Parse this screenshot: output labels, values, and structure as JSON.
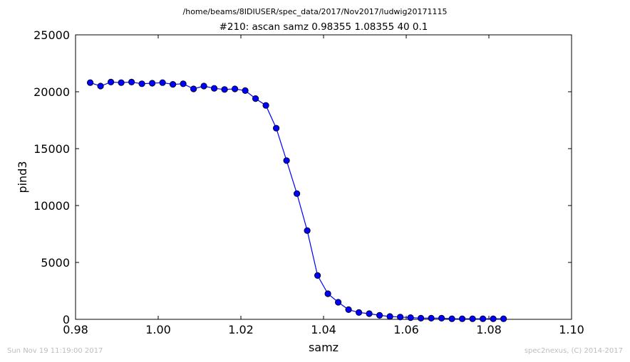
{
  "header": {
    "suptitle": "/home/beams/8IDIUSER/spec_data/2017/Nov2017/ludwig20171115",
    "title": "#210: ascan  samz 0.98355 1.08355  40 0.1"
  },
  "footer": {
    "timestamp": "Sun Nov 19 11:19:00 2017",
    "credit": "spec2nexus, (C) 2014-2017"
  },
  "chart_data": {
    "type": "line",
    "title": "#210: ascan  samz 0.98355 1.08355  40 0.1",
    "xlabel": "samz",
    "ylabel": "pind3",
    "xlim": [
      0.98,
      1.1
    ],
    "ylim": [
      0,
      25000
    ],
    "xticks": [
      0.98,
      1.0,
      1.02,
      1.04,
      1.06,
      1.08,
      1.1
    ],
    "xtick_labels": [
      "0.98",
      "1.00",
      "1.02",
      "1.04",
      "1.06",
      "1.08",
      "1.10"
    ],
    "yticks": [
      0,
      5000,
      10000,
      15000,
      20000,
      25000
    ],
    "ytick_labels": [
      "0",
      "5000",
      "10000",
      "15000",
      "20000",
      "25000"
    ],
    "grid": false,
    "series": [
      {
        "color": "#0000ff",
        "marker": "circle",
        "x": [
          0.98355,
          0.98605,
          0.98855,
          0.99105,
          0.99355,
          0.99605,
          0.99855,
          1.00105,
          1.00355,
          1.00605,
          1.00855,
          1.01105,
          1.01355,
          1.01605,
          1.01855,
          1.02105,
          1.02355,
          1.02605,
          1.02855,
          1.03105,
          1.03355,
          1.03605,
          1.03855,
          1.04105,
          1.04355,
          1.04605,
          1.04855,
          1.05105,
          1.05355,
          1.05605,
          1.05855,
          1.06105,
          1.06355,
          1.06605,
          1.06855,
          1.07105,
          1.07355,
          1.07605,
          1.07855,
          1.08105,
          1.08355
        ],
        "y": [
          20800,
          20500,
          20850,
          20800,
          20850,
          20700,
          20750,
          20800,
          20650,
          20700,
          20250,
          20500,
          20300,
          20200,
          20250,
          20100,
          19400,
          18800,
          16800,
          13950,
          11050,
          7800,
          3850,
          2250,
          1500,
          850,
          600,
          500,
          350,
          250,
          200,
          150,
          100,
          100,
          100,
          50,
          50,
          50,
          50,
          50,
          50
        ]
      }
    ]
  }
}
